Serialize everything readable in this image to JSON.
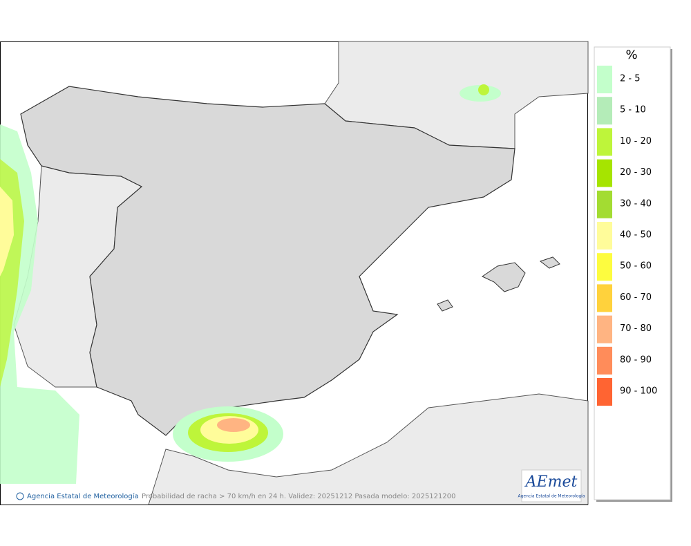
{
  "legend": {
    "title": "%",
    "items": [
      {
        "label": "2 - 5",
        "color": "#c3ffcb"
      },
      {
        "label": "5 - 10",
        "color": "#b4ecb8"
      },
      {
        "label": "10 - 20",
        "color": "#bef53a"
      },
      {
        "label": "20 - 30",
        "color": "#a6e400"
      },
      {
        "label": "30 - 40",
        "color": "#a3dc32"
      },
      {
        "label": "40 - 50",
        "color": "#fffc9a"
      },
      {
        "label": "50 - 60",
        "color": "#fdfc3f"
      },
      {
        "label": "60 - 70",
        "color": "#ffd23c"
      },
      {
        "label": "70 - 80",
        "color": "#ffb482"
      },
      {
        "label": "80 - 90",
        "color": "#ff8c5a"
      },
      {
        "label": "90 - 100",
        "color": "#ff6432"
      }
    ]
  },
  "footer": {
    "credit": "Agencia Estatal de Meteorología",
    "caption": "Probabilidad de racha > 70 km/h en 24 h. Validez: 20251212 Pasada modelo: 2025121200"
  },
  "logo": {
    "name": "AEmet",
    "subtitle": "Agencia Estatal de Meteorología"
  }
}
